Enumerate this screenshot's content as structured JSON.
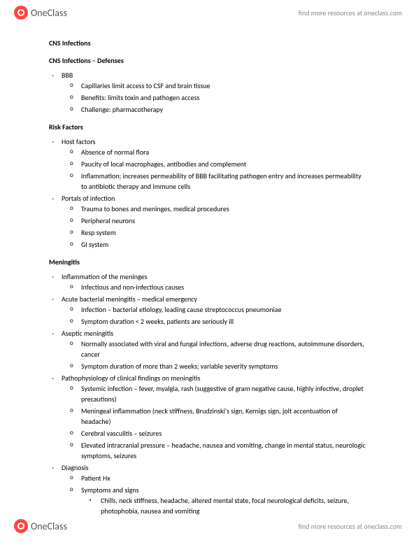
{
  "brand": {
    "name": "OneClass",
    "tagline": "find more resources at oneclass.com",
    "logo_color": "#ff4444"
  },
  "doc": {
    "title": "CNS Infections",
    "sections": [
      {
        "heading": "CNS Infections – Defenses",
        "items": [
          {
            "text": "BBB",
            "sub": [
              {
                "text": "Capillaries limit access to CSF and brain tissue"
              },
              {
                "text": "Benefits: limits toxin and pathogen access"
              },
              {
                "text": "Challenge: pharmacotherapy"
              }
            ]
          }
        ]
      },
      {
        "heading": "Risk Factors",
        "items": [
          {
            "text": "Host factors",
            "sub": [
              {
                "text": "Absence of normal flora"
              },
              {
                "text": "Paucity of local macrophages, antibodies and complement"
              },
              {
                "text": "Inflammation; increases permeability of BBB facilitating pathogen entry and increases permeability to antibiotic therapy and immune cells"
              }
            ]
          },
          {
            "text": "Portals of infection",
            "sub": [
              {
                "text": "Trauma to bones and meninges, medical procedures"
              },
              {
                "text": "Peripheral neurons"
              },
              {
                "text": "Resp system"
              },
              {
                "text": "GI system"
              }
            ]
          }
        ]
      },
      {
        "heading": "Meningitis",
        "items": [
          {
            "text": "Inflammation of the meninges",
            "sub": [
              {
                "text": "Infectious and non-infectious causes"
              }
            ]
          },
          {
            "text": "Acute bacterial meningitis – medical emergency",
            "sub": [
              {
                "text": "Infection – bacterial etiology, leading cause streptococcus pneumoniae"
              },
              {
                "text": "Symptom duration < 2 weeks, patients are seriously ill"
              }
            ]
          },
          {
            "text": "Aseptic meningitis",
            "sub": [
              {
                "text": "Normally associated with viral and fungal infections, adverse drug reactions, autoimmune disorders, cancer"
              },
              {
                "text": "Symptom duration of more than 2 weeks; variable severity symptoms"
              }
            ]
          },
          {
            "text": "Pathophysiology of clinical findings on meningitis",
            "sub": [
              {
                "text": "Systemic infection – fever, myalgia, rash (suggestive of gram negative cause, highly infective, droplet precautions)"
              },
              {
                "text": "Meningeal inflammation (neck stiffness, Brudzinski's sign, Kernigs sign, jolt accentuation of headache)"
              },
              {
                "text": "Cerebral vasculitis – seizures"
              },
              {
                "text": "Elevated intracranial pressure – headache, nausea and vomiting, change in mental status, neurologic symptoms, seizures"
              }
            ]
          },
          {
            "text": "Diagnosis",
            "sub": [
              {
                "text": "Patient Hx"
              },
              {
                "text": "Symptoms and signs",
                "sub": [
                  {
                    "text": "Chills, neck stiffness, headache, altered mental state, focal neurological deficits, seizure, photophobia, nausea and vomiting"
                  }
                ]
              }
            ]
          }
        ]
      }
    ]
  }
}
